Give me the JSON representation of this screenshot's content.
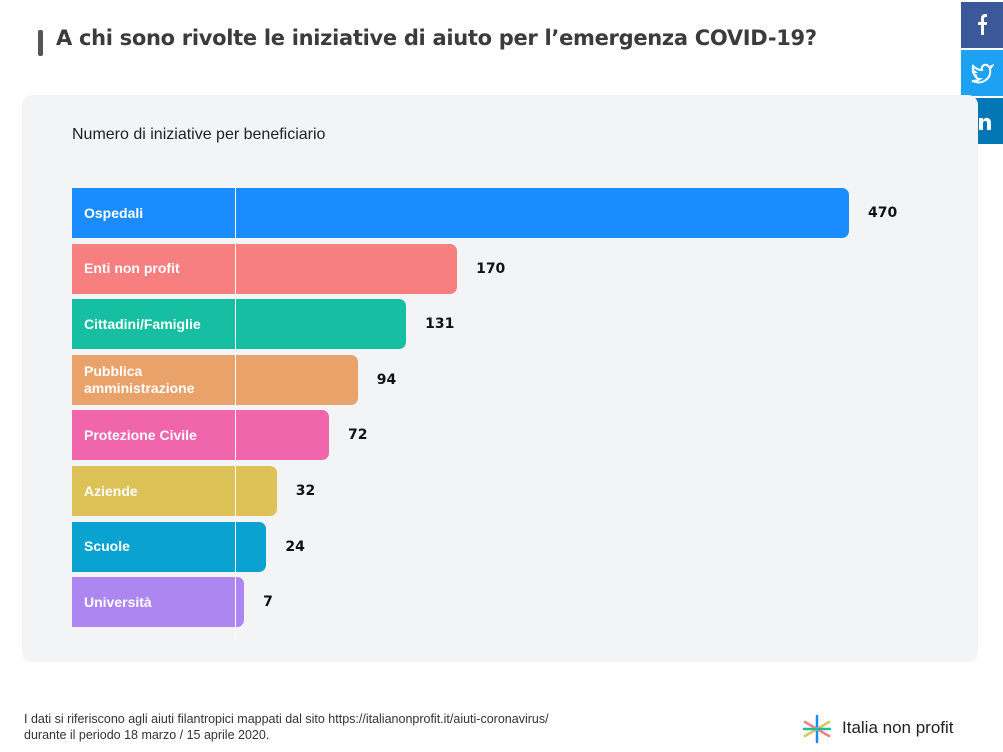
{
  "header": {
    "title": "A chi sono rivolte le iniziative di aiuto per l’emergenza COVID-19?"
  },
  "chart_data": {
    "type": "bar",
    "orientation": "horizontal",
    "title": "Numero di iniziative per beneficiario",
    "categories": [
      "Ospedali",
      "Enti non profit",
      "Cittadini/Famiglie",
      "Pubblica amministrazione",
      "Protezione Civile",
      "Aziende",
      "Scuole",
      "Università"
    ],
    "values": [
      470,
      170,
      131,
      94,
      72,
      32,
      24,
      7
    ],
    "colors": [
      "#1a8cff",
      "#f87f7f",
      "#16bfa1",
      "#e9a26a",
      "#f065ac",
      "#dcc257",
      "#0aa3d1",
      "#ad86f2"
    ],
    "xlim": [
      0,
      470
    ]
  },
  "footer": {
    "note_line1": "I dati si riferiscono agli aiuti filantropici mappati dal sito https://italianonprofit.it/aiuti-coronavirus/",
    "note_line2": "durante il periodo 18 marzo / 15 aprile 2020.",
    "brand": "Italia non profit"
  }
}
